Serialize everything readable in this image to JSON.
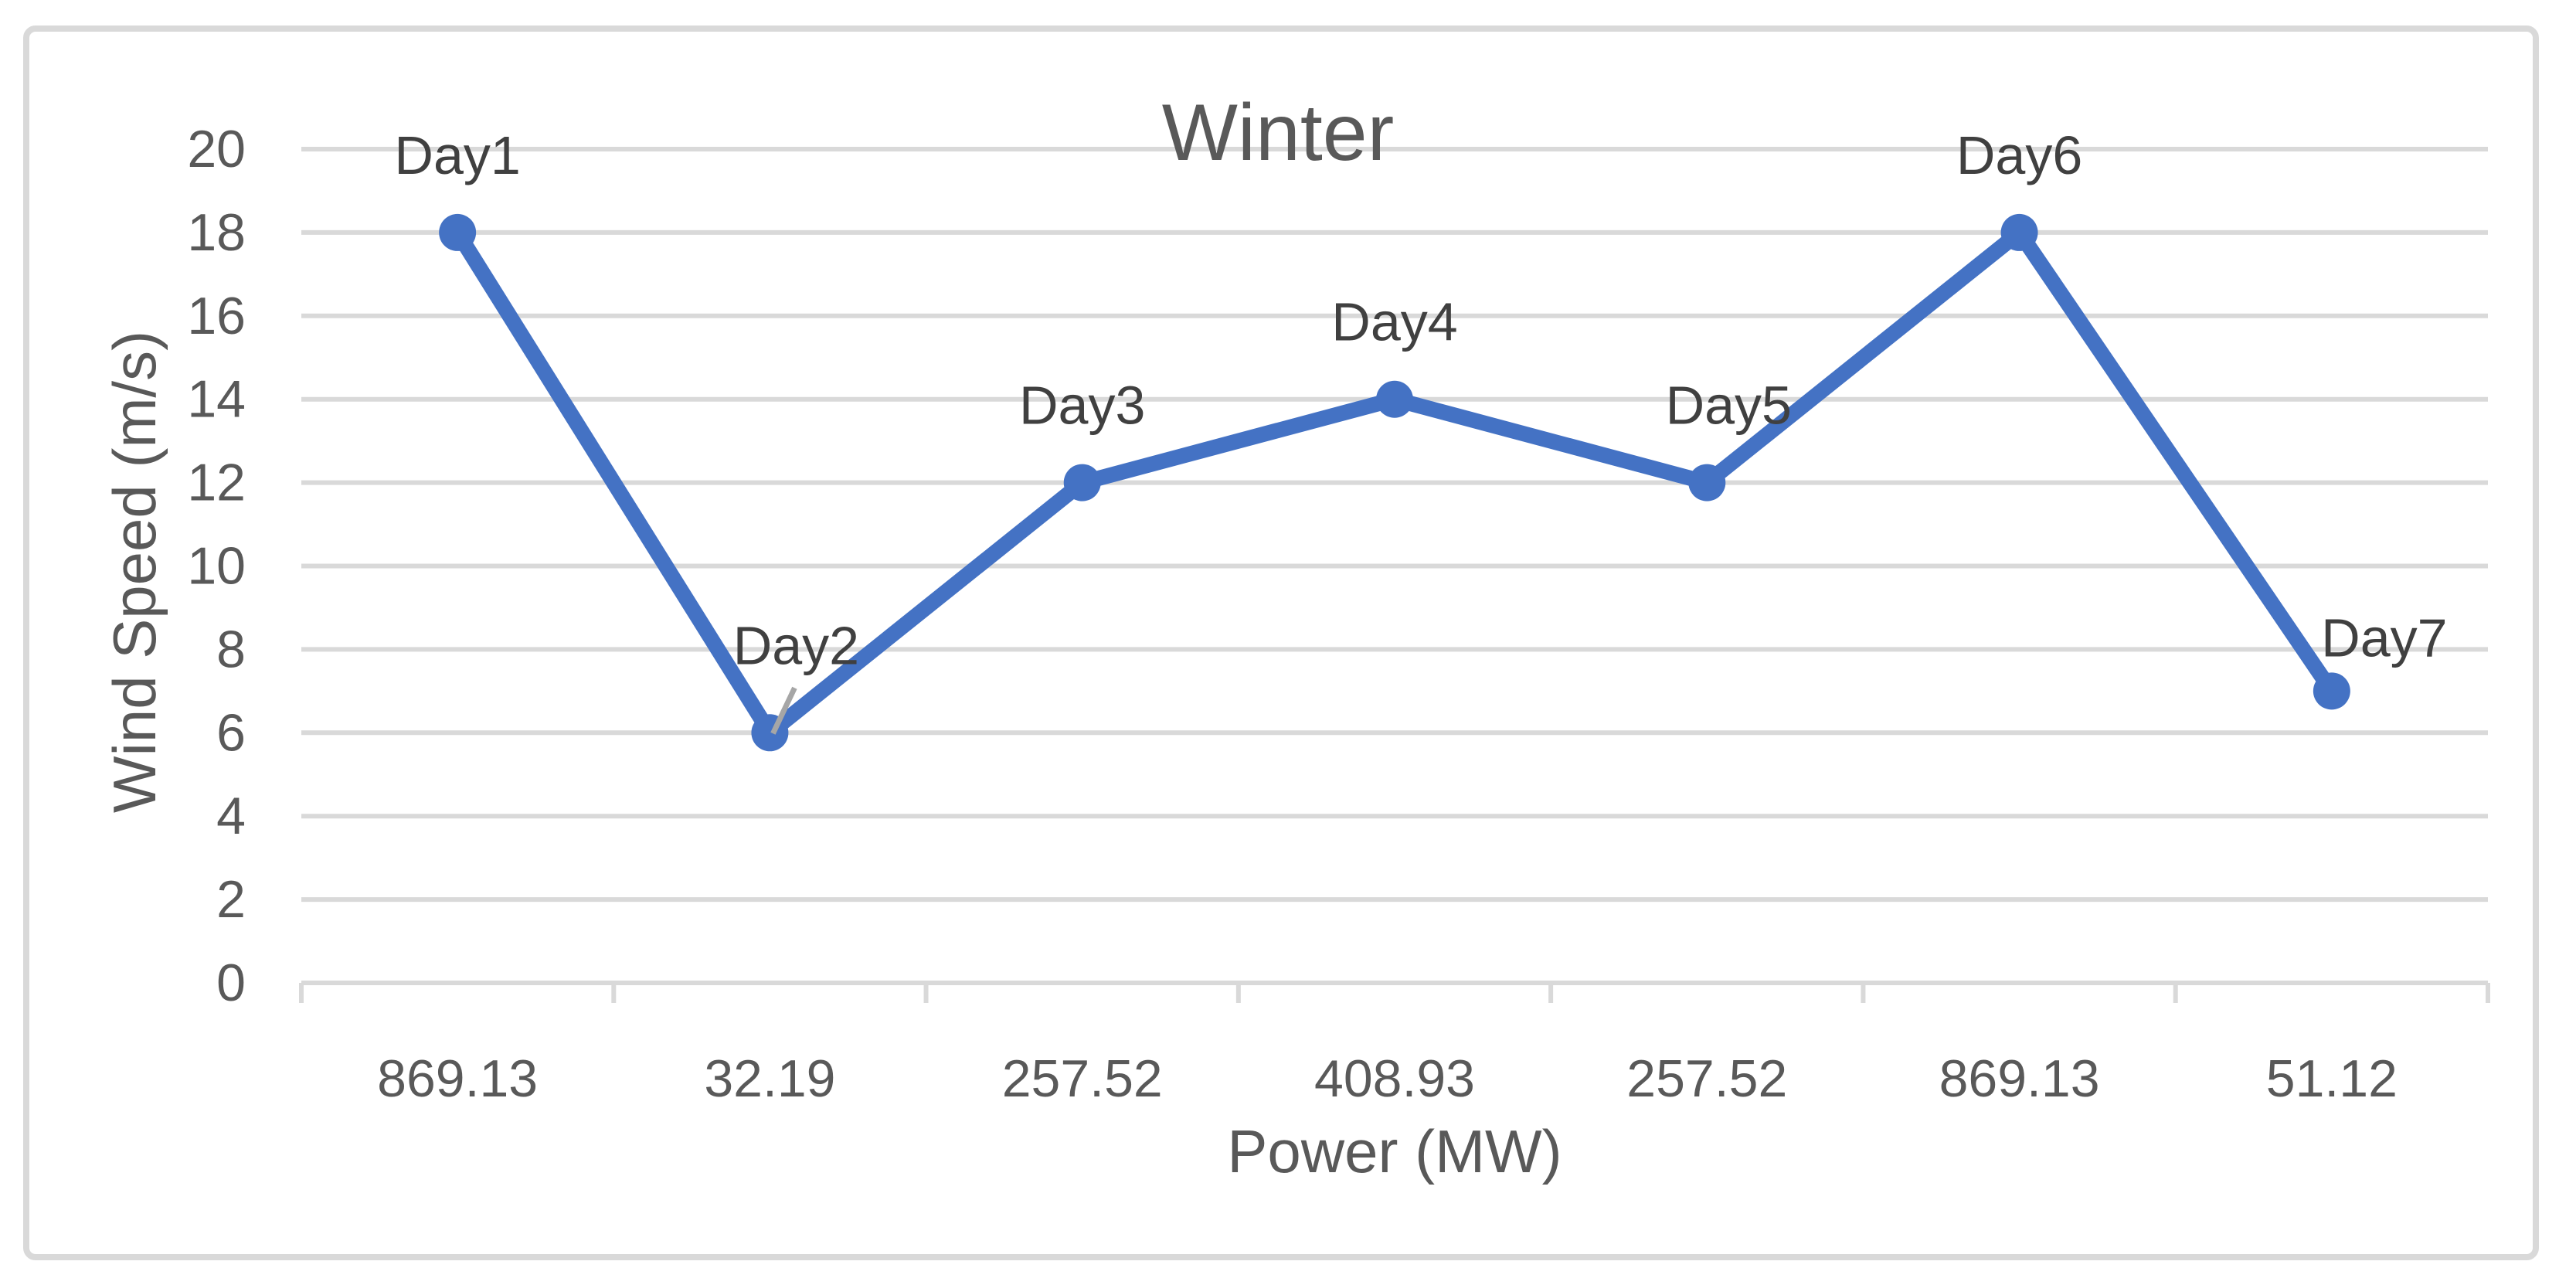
{
  "chart_data": {
    "type": "line",
    "title": "Winter",
    "xlabel": "Power (MW)",
    "ylabel": "Wind Speed (m/s)",
    "categories": [
      "869.13",
      "32.19",
      "257.52",
      "408.93",
      "257.52",
      "869.13",
      "51.12"
    ],
    "values": [
      18,
      6,
      12,
      14,
      12,
      18,
      7
    ],
    "point_labels": [
      "Day1",
      "Day2",
      "Day3",
      "Day4",
      "Day5",
      "Day6",
      "Day7"
    ],
    "yticks": [
      "0",
      "2",
      "4",
      "6",
      "8",
      "10",
      "12",
      "14",
      "16",
      "18",
      "20"
    ],
    "ylim": [
      0,
      20
    ],
    "grid": true,
    "legend": "none",
    "marker": "circle",
    "colors": {
      "line": "#4472C4",
      "marker": "#4472C4",
      "gridline": "#D9D9D9",
      "chart_border": "#D9D9D9",
      "axis_text": "#595959",
      "title_text": "#595959",
      "data_label_text": "#404040",
      "leader_line": "#A6A6A6",
      "background": "#FFFFFF"
    }
  }
}
